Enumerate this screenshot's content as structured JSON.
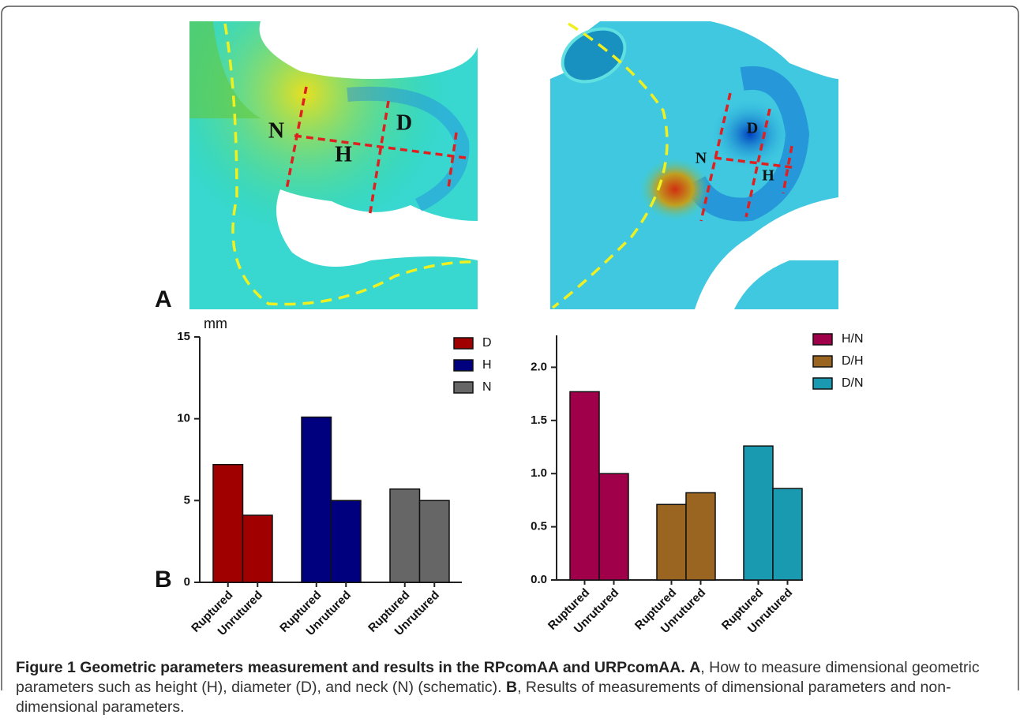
{
  "panel_labels": [
    "A",
    "B"
  ],
  "image_labels": {
    "left": [
      "N",
      "H",
      "D"
    ],
    "right": [
      "N",
      "D",
      "H"
    ]
  },
  "chart_data": [
    {
      "type": "bar",
      "y_label": "mm",
      "categories": [
        "Ruptured",
        "Unrutured"
      ],
      "series": [
        {
          "name": "D",
          "color": "#a00000",
          "values": [
            7.2,
            4.1
          ]
        },
        {
          "name": "H",
          "color": "#00007f",
          "values": [
            10.1,
            5.0
          ]
        },
        {
          "name": "N",
          "color": "#666666",
          "values": [
            5.7,
            5.0
          ]
        }
      ],
      "ylim": [
        0,
        15
      ],
      "yticks": [
        0,
        5,
        10,
        15
      ]
    },
    {
      "type": "bar",
      "categories": [
        "Ruptured",
        "Unrutured"
      ],
      "series": [
        {
          "name": "H/N",
          "color": "#a0004a",
          "values": [
            1.77,
            1.0
          ]
        },
        {
          "name": "D/H",
          "color": "#9a6520",
          "values": [
            0.71,
            0.82
          ]
        },
        {
          "name": "D/N",
          "color": "#1a9ab0",
          "values": [
            1.26,
            0.86
          ]
        }
      ],
      "ylim": [
        0,
        2.3
      ],
      "yticks": [
        {
          "value": 0,
          "label": "0.0"
        },
        0.5,
        {
          "value": 1,
          "label": "1.0"
        },
        1.5,
        {
          "value": 2,
          "label": "2.0"
        }
      ]
    }
  ],
  "caption": {
    "title": "Figure 1 Geometric parameters measurement and results in the RPcomAA and URPcomAA.",
    "a_label": "A",
    "a_text": ", How to measure dimensional geometric parameters such as height (H), diameter (D), and neck (N) (schematic).",
    "b_label": "B",
    "b_text": ", Results of measurements of dimensional parameters and non-dimensional parameters."
  }
}
